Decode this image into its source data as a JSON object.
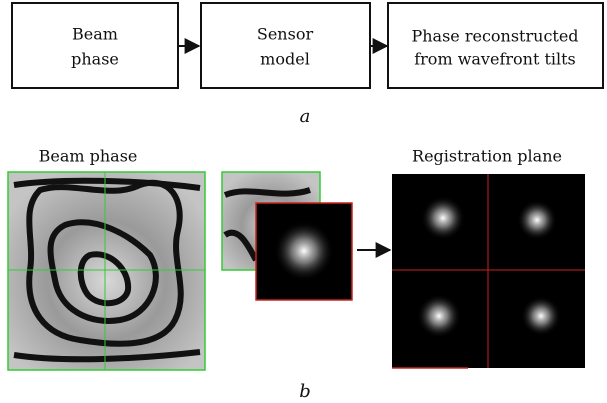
{
  "blocks": [
    {
      "lines": [
        "Beam",
        "phase"
      ]
    },
    {
      "lines": [
        "Sensor",
        "model"
      ]
    },
    {
      "lines": [
        "Phase reconstructed",
        "from wavefront tilts"
      ]
    }
  ],
  "caption_a": "a",
  "panel_labels": {
    "beam_phase": "Beam phase",
    "registration_plane": "Registration plane"
  },
  "caption_b": "b"
}
